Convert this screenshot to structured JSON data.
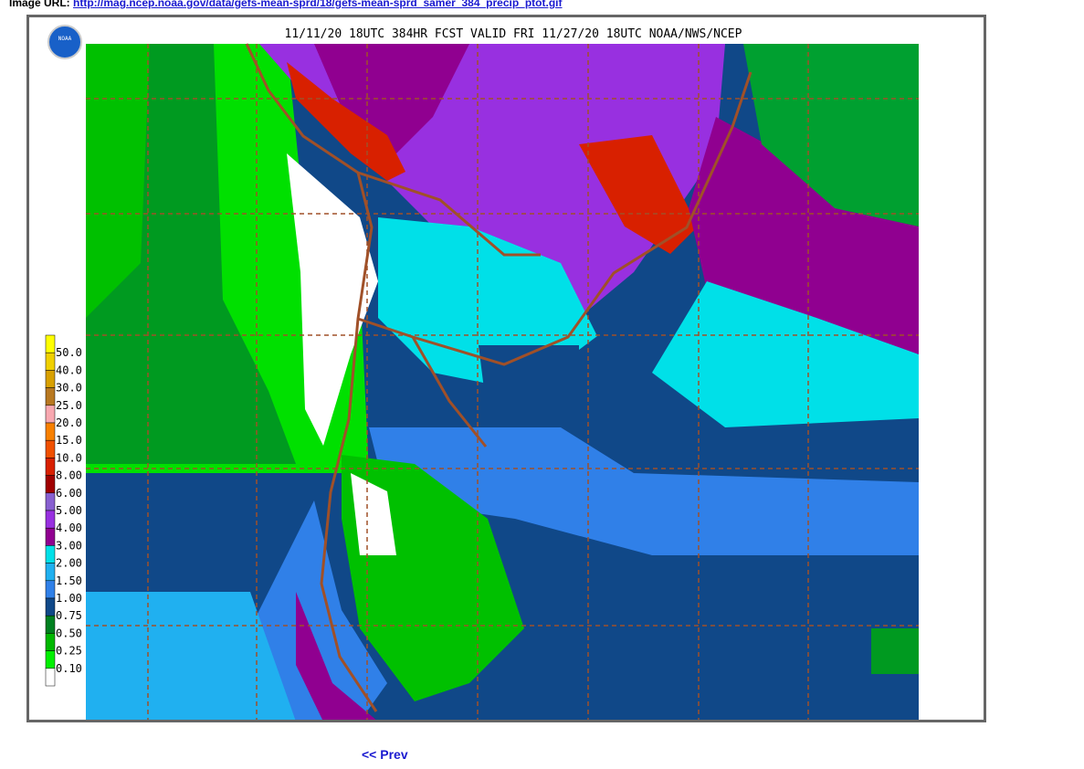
{
  "header": {
    "label": "Image URL:",
    "url": "http://mag.ncep.noaa.gov/data/gefs-mean-sprd/18/gefs-mean-sprd_samer_384_precip_ptot.gif"
  },
  "map": {
    "title": "11/11/20 18UTC 384HR FCST VALID FRI 11/27/20 18UTC NOAA/NWS/NCEP",
    "logo": "NOAA",
    "legend": [
      {
        "label": "50.0",
        "color": "#ffff00"
      },
      {
        "label": "40.0",
        "color": "#f0d000"
      },
      {
        "label": "30.0",
        "color": "#d8a000"
      },
      {
        "label": "25.0",
        "color": "#b87820"
      },
      {
        "label": "20.0",
        "color": "#f8a8b0"
      },
      {
        "label": "15.0",
        "color": "#f88000"
      },
      {
        "label": "10.0",
        "color": "#f05000"
      },
      {
        "label": "8.00",
        "color": "#d82000"
      },
      {
        "label": "6.00",
        "color": "#a00000"
      },
      {
        "label": "5.00",
        "color": "#8860d0"
      },
      {
        "label": "4.00",
        "color": "#9830e0"
      },
      {
        "label": "3.00",
        "color": "#900090"
      },
      {
        "label": "2.00",
        "color": "#00e0e8"
      },
      {
        "label": "1.50",
        "color": "#20b0f0"
      },
      {
        "label": "1.00",
        "color": "#3080e8"
      },
      {
        "label": "0.75",
        "color": "#104888"
      },
      {
        "label": "0.50",
        "color": "#008020"
      },
      {
        "label": "0.25",
        "color": "#00b800"
      },
      {
        "label": "0.10",
        "color": "#00f000"
      },
      {
        "label": "",
        "color": "#ffffff"
      }
    ]
  },
  "nav": {
    "prev": "<< Prev"
  }
}
